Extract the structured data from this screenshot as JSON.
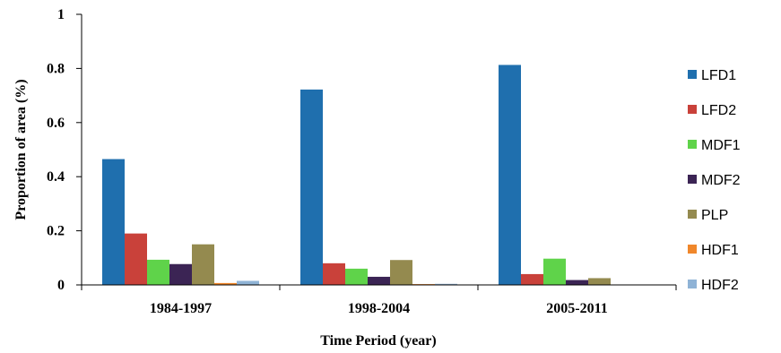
{
  "chart_data": {
    "type": "bar",
    "title": "",
    "xlabel": "Time Period (year)",
    "ylabel": "Proportion of area (%)",
    "categories": [
      "1984-1997",
      "1998-2004",
      "2005-2011"
    ],
    "ylim": [
      0,
      1
    ],
    "yticks": [
      0,
      0.2,
      0.4,
      0.6,
      0.8,
      1
    ],
    "ytick_labels": [
      "0",
      "0.2",
      "0.4",
      "0.6",
      "0.8",
      "1"
    ],
    "grid": false,
    "legend_position": "right",
    "series": [
      {
        "name": "LFD1",
        "color": "#1F6FAE",
        "values": [
          0.465,
          0.722,
          0.813
        ]
      },
      {
        "name": "LFD2",
        "color": "#C9413A",
        "values": [
          0.19,
          0.08,
          0.04
        ]
      },
      {
        "name": "MDF1",
        "color": "#5FD34A",
        "values": [
          0.093,
          0.06,
          0.097
        ]
      },
      {
        "name": "MDF2",
        "color": "#3B2454",
        "values": [
          0.077,
          0.03,
          0.018
        ]
      },
      {
        "name": "PLP",
        "color": "#948A4F",
        "values": [
          0.15,
          0.092,
          0.025
        ]
      },
      {
        "name": "HDF1",
        "color": "#F0872B",
        "values": [
          0.007,
          0.003,
          0.001
        ]
      },
      {
        "name": "HDF2",
        "color": "#8FB3D6",
        "values": [
          0.015,
          0.004,
          0.001
        ]
      }
    ]
  }
}
